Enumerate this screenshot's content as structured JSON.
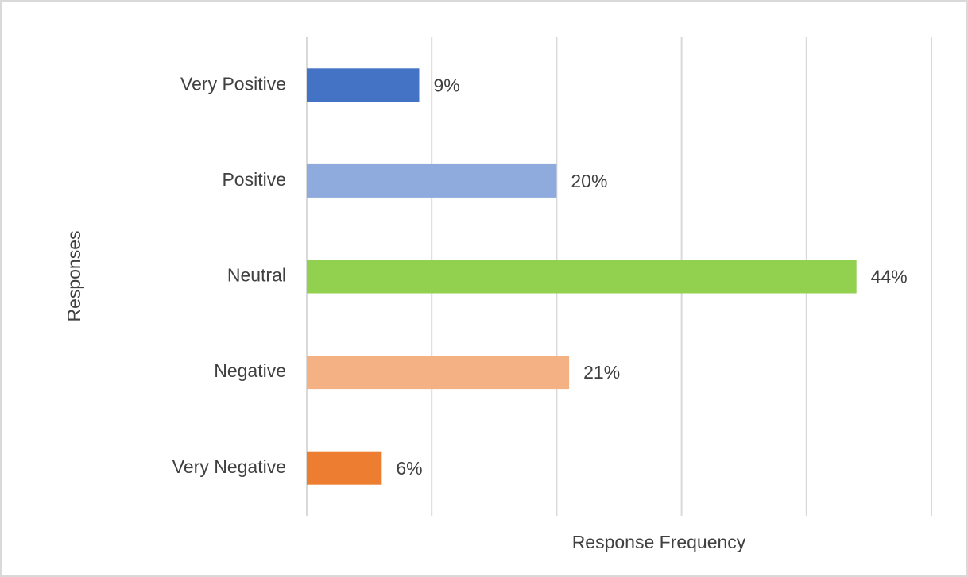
{
  "chart_data": {
    "type": "barh",
    "categories": [
      "Very Positive",
      "Positive",
      "Neutral",
      "Negative",
      "Very Negative"
    ],
    "values": [
      9,
      20,
      44,
      21,
      6
    ],
    "value_labels": [
      "9%",
      "20%",
      "44%",
      "21%",
      "6%"
    ],
    "colors": [
      "#4472c4",
      "#8faadc",
      "#92d050",
      "#f4b183",
      "#ed7d31"
    ],
    "xlabel": "Response Frequency",
    "ylabel": "Responses",
    "xlim": [
      0,
      50
    ],
    "xticks": [
      0,
      10,
      20,
      30,
      40,
      50
    ],
    "grid": true
  }
}
